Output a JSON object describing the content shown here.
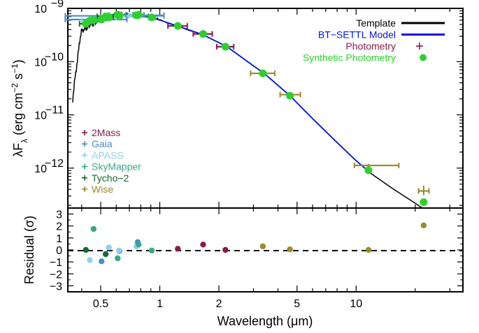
{
  "chart_data": {
    "type": "scatter",
    "axes": {
      "x": {
        "label": "Wavelength (μm)",
        "scale": "log",
        "range": [
          0.34,
          35
        ],
        "ticks": [
          0.5,
          1,
          2,
          5,
          10
        ],
        "tick_labels": [
          "0.5",
          "1",
          "2",
          "5",
          "10"
        ]
      },
      "y_top": {
        "label_parts": [
          "λF",
          "λ",
          " (erg cm",
          "−2",
          " s",
          "−1",
          ")"
        ],
        "scale": "log",
        "range_exponent": [
          -12.75,
          -9.0
        ],
        "ticks_exponent": [
          -12,
          -11,
          -10,
          -9
        ],
        "tick_labels_base": "10",
        "tick_labels_exp": [
          "−12",
          "−11",
          "−10",
          "−9"
        ]
      },
      "y_bottom": {
        "label": "Residual (σ)",
        "range": [
          -3.5,
          3.5
        ],
        "ticks": [
          -3,
          -2,
          -1,
          0,
          1,
          2,
          3
        ],
        "tick_labels": [
          "−3",
          "−2",
          "−1",
          "0",
          "1",
          "2",
          "3"
        ]
      }
    },
    "legend_top_right": [
      {
        "label": "Template",
        "style": "line",
        "color": "#000000"
      },
      {
        "label": "BT−SETTL Model",
        "style": "line",
        "color": "#0018e0"
      },
      {
        "label": "Photometry",
        "style": "plus",
        "color": "#8c1a4a"
      },
      {
        "label": "Synthetic Photometry",
        "style": "dot",
        "color": "#2cd12c"
      }
    ],
    "legend_bottom_left": [
      {
        "label": "2Mass",
        "color": "#8c1a4a"
      },
      {
        "label": "Gaia",
        "color": "#4a8cc4"
      },
      {
        "label": "APASS",
        "color": "#8fd0ee"
      },
      {
        "label": "SkyMapper",
        "color": "#3aa68a"
      },
      {
        "label": "Tycho−2",
        "color": "#146b34"
      },
      {
        "label": "Wise",
        "color": "#9a8b2e"
      }
    ],
    "template_curve": [
      [
        0.36,
        -10.72
      ],
      [
        0.37,
        -10.3
      ],
      [
        0.38,
        -10.0
      ],
      [
        0.39,
        -9.62
      ],
      [
        0.4,
        -9.42
      ],
      [
        0.42,
        -9.38
      ],
      [
        0.45,
        -9.28
      ],
      [
        0.5,
        -9.22
      ],
      [
        0.55,
        -9.16
      ],
      [
        0.6,
        -9.12
      ],
      [
        0.7,
        -9.12
      ],
      [
        0.8,
        -9.13
      ],
      [
        0.9,
        -9.16
      ],
      [
        1.0,
        -9.21
      ],
      [
        1.1,
        -9.28
      ],
      [
        1.25,
        -9.34
      ],
      [
        1.4,
        -9.41
      ],
      [
        1.65,
        -9.49
      ],
      [
        2.2,
        -9.72
      ],
      [
        3.0,
        -10.08
      ],
      [
        3.4,
        -10.22
      ],
      [
        4.6,
        -10.64
      ],
      [
        6.0,
        -11.07
      ],
      [
        8.0,
        -11.52
      ],
      [
        10.0,
        -11.86
      ],
      [
        12.0,
        -12.11
      ],
      [
        15.0,
        -12.36
      ],
      [
        20.0,
        -12.66
      ],
      [
        23.0,
        -12.81
      ],
      [
        30.0,
        -13.18
      ],
      [
        35.0,
        -13.4
      ]
    ],
    "model_curve": [
      [
        0.4,
        -9.3
      ],
      [
        0.5,
        -9.22
      ],
      [
        0.6,
        -9.14
      ],
      [
        0.7,
        -9.13
      ],
      [
        0.8,
        -9.14
      ],
      [
        0.9,
        -9.17
      ],
      [
        1.0,
        -9.22
      ],
      [
        1.25,
        -9.34
      ],
      [
        1.65,
        -9.49
      ],
      [
        2.2,
        -9.72
      ],
      [
        3.0,
        -10.08
      ],
      [
        3.4,
        -10.22
      ],
      [
        4.6,
        -10.64
      ],
      [
        6.0,
        -11.07
      ],
      [
        8.0,
        -11.52
      ],
      [
        10.0,
        -11.86
      ],
      [
        12.0,
        -12.11
      ]
    ],
    "photometry": [
      {
        "survey": "2Mass",
        "color": "#8c1a4a",
        "lam": 1.235,
        "lam_lo": 1.1,
        "lam_hi": 1.38,
        "logf": -9.33,
        "synth_logf": -9.33,
        "residual": 0.1
      },
      {
        "survey": "2Mass",
        "color": "#8c1a4a",
        "lam": 1.662,
        "lam_lo": 1.48,
        "lam_hi": 1.85,
        "logf": -9.48,
        "synth_logf": -9.48,
        "residual": 0.45
      },
      {
        "survey": "2Mass",
        "color": "#8c1a4a",
        "lam": 2.159,
        "lam_lo": 1.95,
        "lam_hi": 2.38,
        "logf": -9.72,
        "synth_logf": -9.72,
        "residual": 0.0
      },
      {
        "survey": "Gaia",
        "color": "#4a8cc4",
        "lam": 0.505,
        "lam_lo": 0.33,
        "lam_hi": 0.68,
        "logf": -9.21,
        "synth_logf": -9.21,
        "residual": -0.95
      },
      {
        "survey": "Gaia",
        "color": "#4a8cc4",
        "lam": 0.623,
        "lam_lo": 0.33,
        "lam_hi": 1.05,
        "logf": -9.14,
        "synth_logf": -9.14,
        "residual": -0.1
      },
      {
        "survey": "Gaia",
        "color": "#4a8cc4",
        "lam": 0.772,
        "lam_lo": 0.63,
        "lam_hi": 1.05,
        "logf": -9.13,
        "synth_logf": -9.13,
        "residual": 0.65
      },
      {
        "survey": "APASS",
        "color": "#8fd0ee",
        "lam": 0.44,
        "lam_lo": 0.4,
        "lam_hi": 0.48,
        "logf": -9.23,
        "synth_logf": -9.23,
        "residual": -0.85
      },
      {
        "survey": "APASS",
        "color": "#8fd0ee",
        "lam": 0.55,
        "lam_lo": 0.5,
        "lam_hi": 0.6,
        "logf": -9.17,
        "synth_logf": -9.17,
        "residual": 0.2
      },
      {
        "survey": "APASS",
        "color": "#8fd0ee",
        "lam": 0.62,
        "lam_lo": 0.56,
        "lam_hi": 0.69,
        "logf": -9.14,
        "synth_logf": -9.14,
        "residual": -0.05
      },
      {
        "survey": "APASS",
        "color": "#8fd0ee",
        "lam": 0.76,
        "lam_lo": 0.7,
        "lam_hi": 0.83,
        "logf": -9.13,
        "synth_logf": -9.13,
        "residual": 0.3
      },
      {
        "survey": "SkyMapper",
        "color": "#3aa68a",
        "lam": 0.46,
        "lam_lo": 0.44,
        "lam_hi": 0.48,
        "logf": -9.22,
        "synth_logf": -9.22,
        "residual": 1.75
      },
      {
        "survey": "SkyMapper",
        "color": "#3aa68a",
        "lam": 0.61,
        "lam_lo": 0.55,
        "lam_hi": 0.67,
        "logf": -9.12,
        "synth_logf": -9.12,
        "residual": -0.7
      },
      {
        "survey": "SkyMapper",
        "color": "#3aa68a",
        "lam": 0.78,
        "lam_lo": 0.73,
        "lam_hi": 0.83,
        "logf": -9.12,
        "synth_logf": -9.12,
        "residual": 0.45
      },
      {
        "survey": "SkyMapper",
        "color": "#3aa68a",
        "lam": 0.91,
        "lam_lo": 0.88,
        "lam_hi": 0.95,
        "logf": -9.17,
        "synth_logf": -9.17,
        "residual": -0.05
      },
      {
        "survey": "Tycho−2",
        "color": "#146b34",
        "lam": 0.42,
        "lam_lo": 0.39,
        "lam_hi": 0.46,
        "logf": -9.29,
        "synth_logf": -9.29,
        "residual": 0.0
      },
      {
        "survey": "Tycho−2",
        "color": "#146b34",
        "lam": 0.53,
        "lam_lo": 0.48,
        "lam_hi": 0.58,
        "logf": -9.15,
        "synth_logf": -9.15,
        "residual": -0.35
      },
      {
        "survey": "Wise",
        "color": "#9a8b2e",
        "lam": 3.35,
        "lam_lo": 2.9,
        "lam_hi": 3.85,
        "logf": -10.22,
        "synth_logf": -10.22,
        "residual": 0.3
      },
      {
        "survey": "Wise",
        "color": "#9a8b2e",
        "lam": 4.6,
        "lam_lo": 4.1,
        "lam_hi": 5.2,
        "logf": -10.62,
        "synth_logf": -10.64,
        "residual": 0.05
      },
      {
        "survey": "Wise",
        "color": "#9a8b2e",
        "lam": 11.56,
        "lam_lo": 9.8,
        "lam_hi": 16.5,
        "logf": -11.95,
        "synth_logf": -12.04,
        "residual": 0.0
      },
      {
        "survey": "Wise",
        "color": "#9a8b2e",
        "lam": 22.08,
        "lam_lo": 20.8,
        "lam_hi": 23.5,
        "logf": -12.43,
        "synth_logf": -12.64,
        "residual": 2.05,
        "yerr": [
          0.1,
          0.08
        ]
      }
    ]
  }
}
